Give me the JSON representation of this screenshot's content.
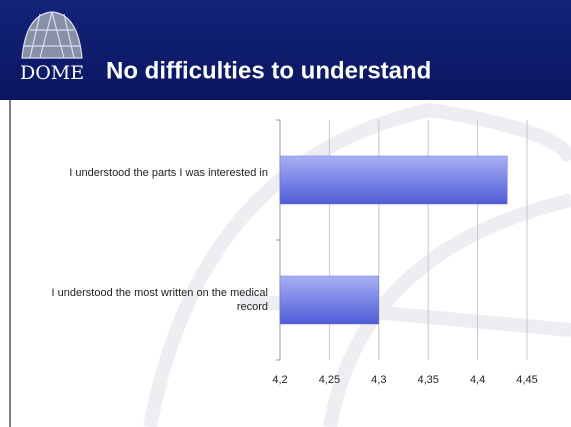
{
  "logo": "DOME",
  "chart_data": {
    "type": "bar",
    "orientation": "horizontal",
    "title": "No difficulties to understand",
    "categories": [
      "I understood the parts I was interested in",
      "I understood the most written on the medical record"
    ],
    "values": [
      4.43,
      4.3
    ],
    "color": "#6470e0",
    "xlim": [
      4.2,
      4.45
    ],
    "xticks": [
      {
        "value": 4.2,
        "label": "4,2"
      },
      {
        "value": 4.25,
        "label": "4,25"
      },
      {
        "value": 4.3,
        "label": "4,3"
      },
      {
        "value": 4.35,
        "label": "4,35"
      },
      {
        "value": 4.4,
        "label": "4,4"
      },
      {
        "value": 4.45,
        "label": "4,45"
      }
    ],
    "grid": true
  }
}
